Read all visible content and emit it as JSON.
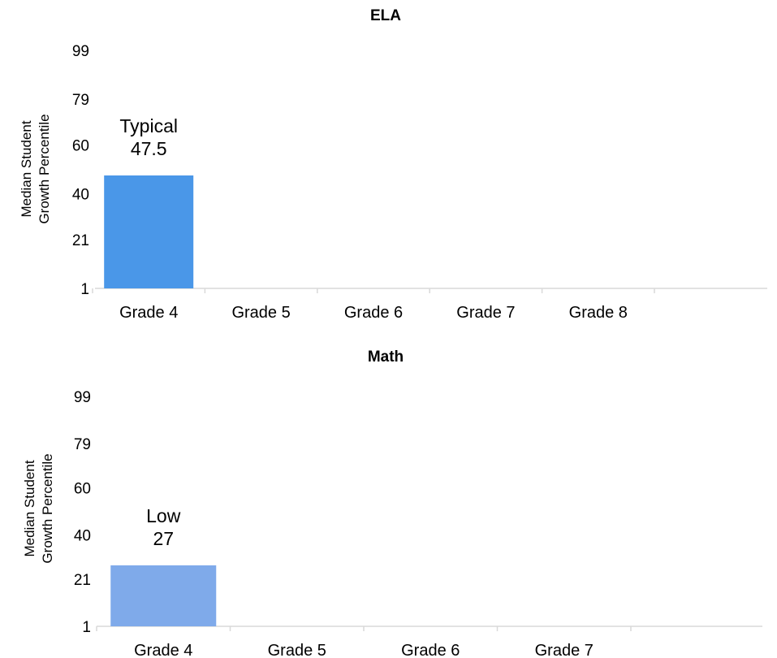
{
  "chart_data": [
    {
      "type": "bar",
      "title": "ELA",
      "ylabel": [
        "Median Student",
        "Growth Percentile"
      ],
      "yticks": [
        1,
        21,
        40,
        60,
        79,
        99
      ],
      "ylim": [
        1,
        99
      ],
      "categories": [
        "Grade 4",
        "Grade 5",
        "Grade 6",
        "Grade 7",
        "Grade 8"
      ],
      "values": [
        47.5,
        null,
        null,
        null,
        null
      ],
      "bar_labels": [
        "Typical",
        "",
        "",
        "",
        ""
      ],
      "bar_colors": [
        "#4A97E8",
        "",
        "",
        "",
        ""
      ]
    },
    {
      "type": "bar",
      "title": "Math",
      "ylabel": [
        "Median Student",
        "Growth Percentile"
      ],
      "yticks": [
        1,
        21,
        40,
        60,
        79,
        99
      ],
      "ylim": [
        1,
        99
      ],
      "categories": [
        "Grade 4",
        "Grade 5",
        "Grade 6",
        "Grade 7"
      ],
      "values": [
        27,
        null,
        null,
        null
      ],
      "bar_labels": [
        "Low",
        "",
        "",
        ""
      ],
      "bar_colors": [
        "#7FAAEA",
        "",
        "",
        ""
      ]
    }
  ]
}
